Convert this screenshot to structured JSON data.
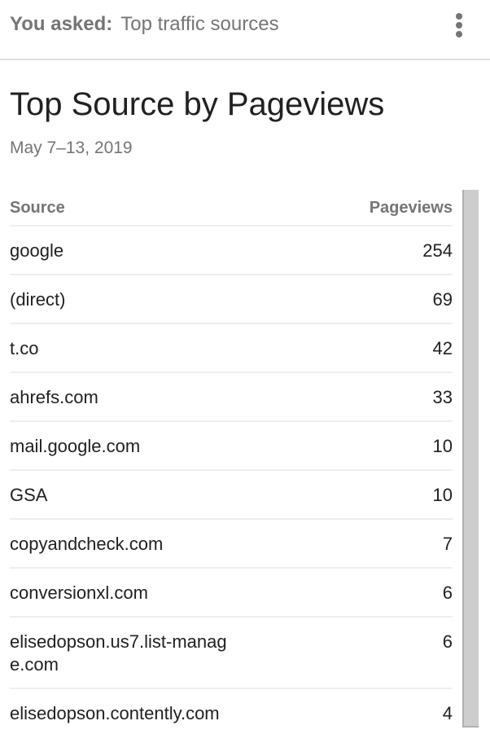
{
  "header": {
    "asked_label": "You asked:",
    "query": "Top traffic sources",
    "menu_icon": "more-vert-icon"
  },
  "card": {
    "title": "Top Source by Pageviews",
    "date_range": "May 7–13, 2019"
  },
  "table": {
    "columns": [
      "Source",
      "Pageviews"
    ],
    "rows": [
      {
        "source": "google",
        "pageviews": "254"
      },
      {
        "source": "(direct)",
        "pageviews": "69"
      },
      {
        "source": "t.co",
        "pageviews": "42"
      },
      {
        "source": "ahrefs.com",
        "pageviews": "33"
      },
      {
        "source": "mail.google.com",
        "pageviews": "10"
      },
      {
        "source": "GSA",
        "pageviews": "10"
      },
      {
        "source": "copyandcheck.com",
        "pageviews": "7"
      },
      {
        "source": "conversionxl.com",
        "pageviews": "6"
      },
      {
        "source": "elisedopson.us7.list-manage.com",
        "pageviews": "6"
      },
      {
        "source": "elisedopson.contently.com",
        "pageviews": "4"
      }
    ]
  }
}
